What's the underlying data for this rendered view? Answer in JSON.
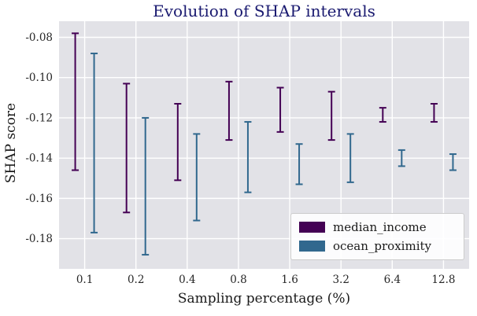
{
  "title": "Evolution of SHAP intervals",
  "title_color": "#1a1a70",
  "chart_data": {
    "type": "error-interval",
    "title": "Evolution of SHAP intervals",
    "xlabel": "Sampling percentage (%)",
    "ylabel": "SHAP score",
    "categories": [
      "0.1",
      "0.2",
      "0.4",
      "0.8",
      "1.6",
      "3.2",
      "6.4",
      "12.8"
    ],
    "x_scale": "log2",
    "ylim": [
      -0.195,
      -0.072
    ],
    "yticks": [
      -0.08,
      -0.1,
      -0.12,
      -0.14,
      -0.16,
      -0.18
    ],
    "grid": true,
    "plot_bg": "#e2e2e7",
    "grid_color": "#ffffff",
    "tick_color": "#262626",
    "legend_position": "lower right",
    "series": [
      {
        "name": "median_income",
        "color": "#440154",
        "intervals": [
          [
            -0.146,
            -0.078
          ],
          [
            -0.167,
            -0.103
          ],
          [
            -0.151,
            -0.113
          ],
          [
            -0.131,
            -0.102
          ],
          [
            -0.127,
            -0.105
          ],
          [
            -0.131,
            -0.107
          ],
          [
            -0.122,
            -0.115
          ],
          [
            -0.122,
            -0.113
          ]
        ]
      },
      {
        "name": "ocean_proximity",
        "color": "#31688e",
        "intervals": [
          [
            -0.177,
            -0.088
          ],
          [
            -0.188,
            -0.12
          ],
          [
            -0.171,
            -0.128
          ],
          [
            -0.157,
            -0.122
          ],
          [
            -0.153,
            -0.133
          ],
          [
            -0.152,
            -0.128
          ],
          [
            -0.144,
            -0.136
          ],
          [
            -0.146,
            -0.138
          ]
        ]
      }
    ]
  }
}
